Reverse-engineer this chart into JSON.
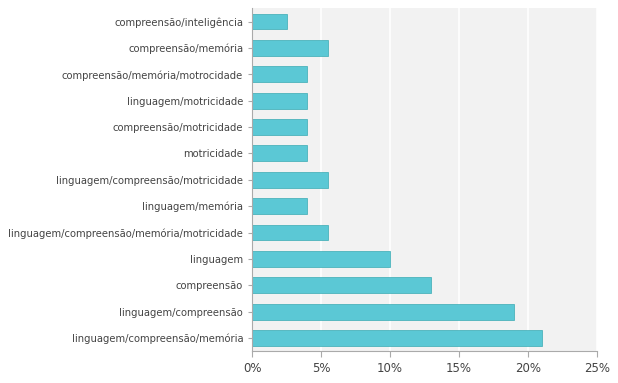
{
  "categories": [
    "linguagem/compreensão/memória",
    "linguagem/compreensão",
    "compreensão",
    "linguagem",
    "linguagem/compreensão/memória/motricidade",
    "linguagem/memória",
    "linguagem/compreensão/motricidade",
    "motricidade",
    "compreensão/motricidade",
    "linguagem/motricidade",
    "compreensão/memória/motrocidade",
    "compreensão/memória",
    "compreensão/inteligência"
  ],
  "values": [
    21.0,
    19.0,
    13.0,
    10.0,
    5.5,
    4.0,
    5.5,
    4.0,
    4.0,
    4.0,
    4.0,
    5.5,
    2.5
  ],
  "bar_color": "#5BC8D5",
  "bar_edge_color": "#3AABB3",
  "xlim": [
    0,
    25
  ],
  "xtick_labels": [
    "0%",
    "5%",
    "10%",
    "15%",
    "20%",
    "25%"
  ],
  "xtick_values": [
    0,
    5,
    10,
    15,
    20,
    25
  ],
  "background_color": "#ffffff",
  "plot_bg_color": "#f2f2f2",
  "grid_color": "#ffffff",
  "bar_height": 0.6,
  "label_fontsize": 7.2,
  "tick_fontsize": 8.5
}
